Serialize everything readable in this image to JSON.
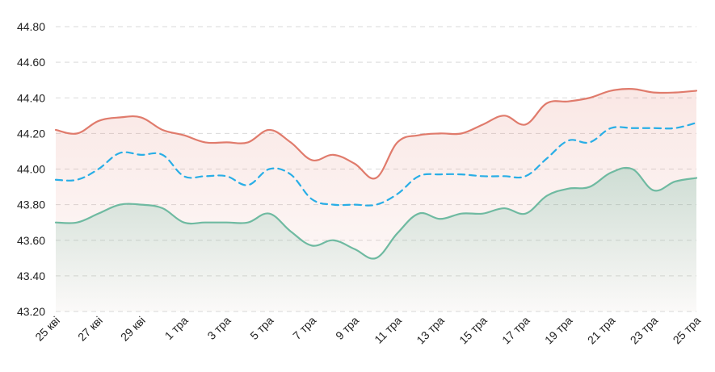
{
  "chart_data": {
    "type": "area",
    "title": "",
    "xlabel": "",
    "ylabel": "",
    "grid": true,
    "ylim": [
      43.2,
      44.8
    ],
    "yticks": [
      "43.20",
      "43.40",
      "43.60",
      "43.80",
      "44.00",
      "44.20",
      "44.40",
      "44.60",
      "44.80"
    ],
    "xtick_labels": [
      "25 кві",
      "27 кві",
      "29 кві",
      "1 тра",
      "3 тра",
      "5 тра",
      "7 тра",
      "9 тра",
      "11 тра",
      "13 тра",
      "15 тра",
      "17 тра",
      "19 тра",
      "21 тра",
      "23 тра",
      "25 тра"
    ],
    "x": [
      "25 кві",
      "26 кві",
      "27 кві",
      "28 кві",
      "29 кві",
      "30 кві",
      "1 тра",
      "2 тра",
      "3 тра",
      "4 тра",
      "5 тра",
      "6 тра",
      "7 тра",
      "8 тра",
      "9 тра",
      "10 тра",
      "11 тра",
      "12 тра",
      "13 тра",
      "14 тра",
      "15 тра",
      "16 тра",
      "17 тра",
      "18 тра",
      "19 тра",
      "20 тра",
      "21 тра",
      "22 тра",
      "23 тра",
      "24 тра",
      "25 тра"
    ],
    "series": [
      {
        "color": "#e07b6c",
        "style": "solid",
        "values": [
          44.22,
          44.2,
          44.27,
          44.29,
          44.29,
          44.22,
          44.19,
          44.15,
          44.15,
          44.15,
          44.22,
          44.15,
          44.05,
          44.08,
          44.03,
          43.95,
          44.15,
          44.19,
          44.2,
          44.2,
          44.25,
          44.3,
          44.25,
          44.37,
          44.38,
          44.4,
          44.44,
          44.45,
          44.43,
          44.43,
          44.44
        ]
      },
      {
        "color": "#29aee6",
        "style": "dashed",
        "values": [
          43.94,
          43.94,
          44.0,
          44.09,
          44.08,
          44.08,
          43.96,
          43.96,
          43.96,
          43.91,
          44.0,
          43.97,
          43.83,
          43.8,
          43.8,
          43.8,
          43.86,
          43.96,
          43.97,
          43.97,
          43.96,
          43.96,
          43.96,
          44.06,
          44.16,
          44.15,
          44.23,
          44.23,
          44.23,
          44.23,
          44.26
        ]
      },
      {
        "color": "#6fbaa1",
        "style": "solid",
        "values": [
          43.7,
          43.7,
          43.75,
          43.8,
          43.8,
          43.78,
          43.7,
          43.7,
          43.7,
          43.7,
          43.75,
          43.65,
          43.57,
          43.6,
          43.55,
          43.5,
          43.64,
          43.75,
          43.72,
          43.75,
          43.75,
          43.78,
          43.75,
          43.85,
          43.89,
          43.9,
          43.98,
          44.0,
          43.88,
          43.93,
          43.95
        ]
      }
    ]
  }
}
